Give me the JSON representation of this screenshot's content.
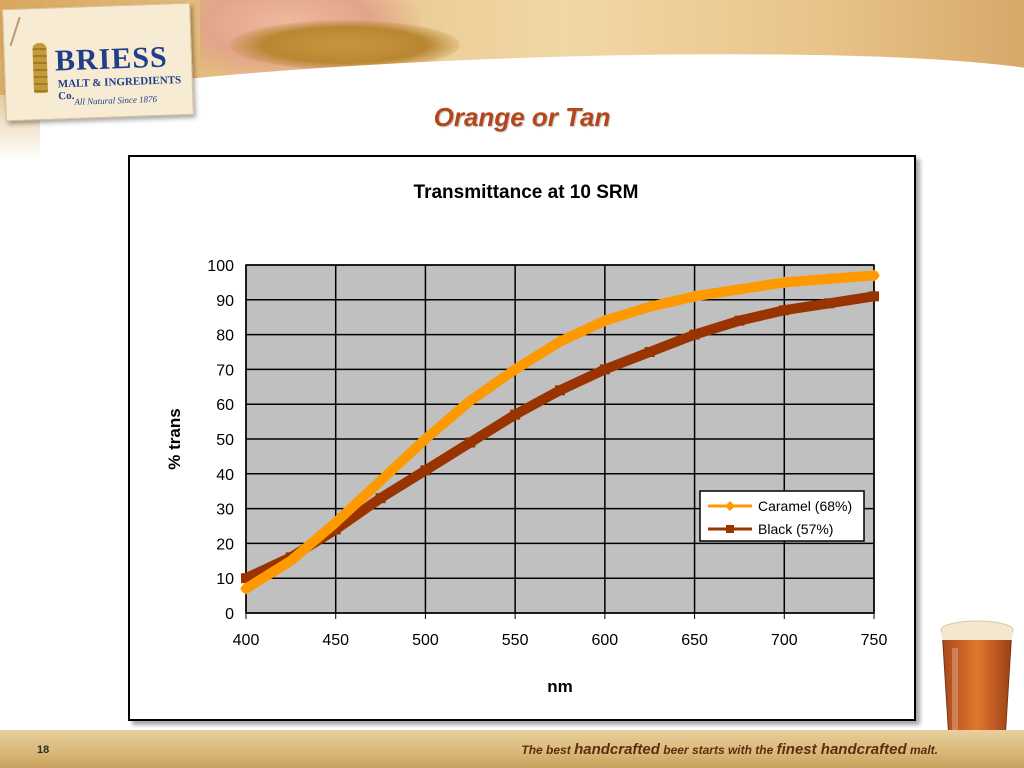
{
  "brand": {
    "name": "BRIESS",
    "sub": "MALT & INGREDIENTS Co.",
    "since": "All Natural Since 1876"
  },
  "slide": {
    "title": "Orange or Tan",
    "page_number": "18"
  },
  "footer": {
    "t1": "The best ",
    "t2": "handcrafted",
    "t3": " beer starts with the ",
    "t4": "finest handcrafted",
    "t5": " malt."
  },
  "colors": {
    "title": "#b5461a",
    "plot_bg": "#c0c0c0",
    "caramel": "#ff9900",
    "black": "#993300"
  },
  "chart_data": {
    "type": "line",
    "title": "Transmittance at 10 SRM",
    "xlabel": "nm",
    "ylabel": "% trans",
    "xlim": [
      400,
      750
    ],
    "ylim": [
      0,
      100
    ],
    "x_ticks": [
      400,
      450,
      500,
      550,
      600,
      650,
      700,
      750
    ],
    "y_ticks": [
      0,
      10,
      20,
      30,
      40,
      50,
      60,
      70,
      80,
      90,
      100
    ],
    "grid": true,
    "legend_position": "right-middle",
    "x": [
      400,
      425,
      450,
      475,
      500,
      525,
      550,
      575,
      600,
      625,
      650,
      675,
      700,
      725,
      750
    ],
    "series": [
      {
        "name": "Caramel (68%)",
        "color": "#ff9900",
        "marker": "diamond",
        "values": [
          7,
          15,
          26,
          38,
          50,
          61,
          70,
          78,
          84,
          88,
          91,
          93,
          95,
          96,
          97
        ]
      },
      {
        "name": "Black (57%)",
        "color": "#993300",
        "marker": "square",
        "values": [
          10,
          16,
          24,
          33,
          41,
          49,
          57,
          64,
          70,
          75,
          80,
          84,
          87,
          89,
          91
        ]
      }
    ]
  }
}
